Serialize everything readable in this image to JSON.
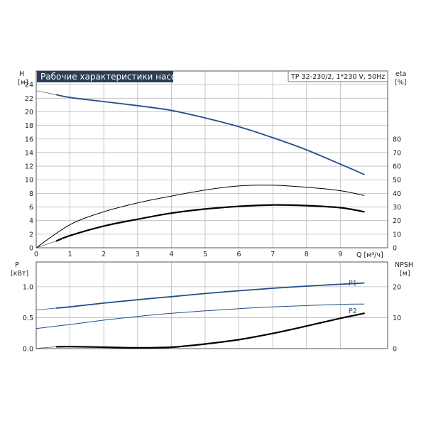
{
  "title": "Рабочие характеристики насоса",
  "info": "TP 32-230/2, 1*230 V, 50Hz",
  "colors": {
    "blue": "#1f4e8c",
    "black": "#000000",
    "title_bg": "#2b3e57"
  },
  "chart_data": [
    {
      "type": "line",
      "name": "upper",
      "x_ticks": [
        "0",
        "1",
        "2",
        "3",
        "4",
        "5",
        "6",
        "7",
        "8",
        "9"
      ],
      "x_unit_label": "Q [м³/ч]",
      "xlim": [
        0,
        10.4
      ],
      "left_axis": {
        "label": "H",
        "unit": "[м]",
        "ylim": [
          0,
          26
        ],
        "ticks": [
          "0",
          "2",
          "4",
          "6",
          "8",
          "10",
          "12",
          "14",
          "16",
          "18",
          "20",
          "22",
          "24"
        ]
      },
      "right_axis": {
        "label": "eta",
        "unit": "[%]",
        "ylim": [
          0,
          130
        ],
        "ticks": [
          "0",
          "10",
          "20",
          "30",
          "40",
          "50",
          "60",
          "70",
          "80"
        ]
      },
      "grid": true,
      "series": [
        {
          "axis": "left",
          "color": "#1f4e8c",
          "width": 1.8,
          "x": [
            0.6,
            1,
            2,
            3,
            4,
            5,
            6,
            7,
            8,
            9,
            9.7
          ],
          "y": [
            22.5,
            22.1,
            21.5,
            20.9,
            20.2,
            19.1,
            17.8,
            16.2,
            14.4,
            12.3,
            10.8
          ]
        },
        {
          "axis": "left",
          "color": "#555555",
          "width": 0.7,
          "dash": "none",
          "x": [
            0,
            0.6
          ],
          "y": [
            23.1,
            22.5
          ]
        },
        {
          "axis": "right",
          "color": "#000000",
          "width": 1.0,
          "x": [
            0,
            1,
            2,
            3,
            4,
            5,
            6,
            7,
            8,
            9,
            9.7
          ],
          "y": [
            0,
            17,
            26.5,
            33,
            38,
            42.5,
            45.5,
            46,
            44.5,
            42,
            38.5
          ]
        },
        {
          "axis": "right",
          "color": "#000000",
          "width": 2.2,
          "x": [
            0.6,
            1,
            2,
            3,
            4,
            5,
            6,
            7,
            8,
            9,
            9.7
          ],
          "y": [
            5,
            9,
            16,
            21,
            25.5,
            28.5,
            30.5,
            31.5,
            31,
            29.5,
            26.5
          ]
        },
        {
          "axis": "right",
          "color": "#555555",
          "width": 0.7,
          "x": [
            0,
            0.6
          ],
          "y": [
            0,
            5
          ]
        }
      ]
    },
    {
      "type": "line",
      "name": "lower",
      "left_axis": {
        "label": "P",
        "unit": "[кВт]",
        "ylim": [
          0,
          1.4
        ],
        "ticks": [
          "0.0",
          "0.5",
          "1.0"
        ]
      },
      "right_axis": {
        "label": "NPSH",
        "unit": "[м]",
        "ylim": [
          0,
          28
        ],
        "ticks": [
          "0",
          "10",
          "20"
        ]
      },
      "grid": true,
      "series": [
        {
          "name": "P1",
          "axis": "left",
          "color": "#1f4e8c",
          "width": 1.8,
          "x": [
            0.6,
            1,
            2,
            3,
            4,
            5,
            6,
            7,
            8,
            9,
            9.7
          ],
          "y": [
            0.655,
            0.675,
            0.735,
            0.79,
            0.84,
            0.89,
            0.935,
            0.975,
            1.01,
            1.04,
            1.06
          ]
        },
        {
          "axis": "left",
          "color": "#1f4e8c",
          "width": 0.8,
          "x": [
            0,
            0.6
          ],
          "y": [
            0.625,
            0.655
          ]
        },
        {
          "name": "P2",
          "axis": "left",
          "color": "#1f4e8c",
          "width": 1.0,
          "x": [
            0,
            1,
            2,
            3,
            4,
            5,
            6,
            7,
            8,
            9,
            9.7
          ],
          "y": [
            0.325,
            0.39,
            0.46,
            0.52,
            0.57,
            0.61,
            0.645,
            0.675,
            0.695,
            0.715,
            0.72
          ]
        },
        {
          "name": "NPSH",
          "axis": "right",
          "color": "#000000",
          "width": 2.2,
          "x": [
            0.6,
            1,
            2,
            3,
            4,
            5,
            6,
            7,
            8,
            9,
            9.7
          ],
          "y": [
            0.6,
            0.65,
            0.45,
            0.25,
            0.45,
            1.5,
            2.9,
            4.9,
            7.3,
            9.8,
            11.4
          ]
        },
        {
          "axis": "right",
          "color": "#555555",
          "width": 0.7,
          "x": [
            0,
            0.6
          ],
          "y": [
            0.1,
            0.6
          ]
        }
      ]
    }
  ]
}
